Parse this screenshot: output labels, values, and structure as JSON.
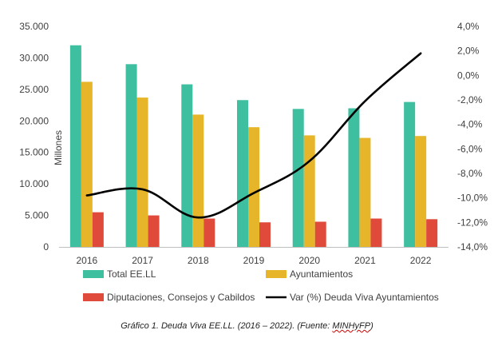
{
  "chart_data": {
    "type": "bar",
    "categories": [
      "2016",
      "2017",
      "2018",
      "2019",
      "2020",
      "2021",
      "2022"
    ],
    "series": [
      {
        "name": "Total EE.LL",
        "color": "#3DBFA0",
        "axis": "left",
        "kind": "bar",
        "values": [
          32000,
          29000,
          25800,
          23300,
          21900,
          22000,
          23000
        ]
      },
      {
        "name": "Ayuntamientos",
        "color": "#E6B52A",
        "axis": "left",
        "kind": "bar",
        "values": [
          26200,
          23700,
          21000,
          19000,
          17700,
          17300,
          17600
        ]
      },
      {
        "name": "Diputaciones, Consejos y Cabildos",
        "color": "#E04A3A",
        "axis": "left",
        "kind": "bar",
        "values": [
          5500,
          5000,
          4500,
          3900,
          4000,
          4500,
          4400
        ]
      },
      {
        "name": "Var (%) Deuda Viva Ayuntamientos",
        "color": "#000000",
        "axis": "right",
        "kind": "line",
        "values": [
          -9.8,
          -9.3,
          -11.6,
          -9.6,
          -7.0,
          -2.1,
          1.8
        ]
      }
    ],
    "y_left": {
      "label": "Millones",
      "ylim": [
        0,
        35000
      ],
      "ticks": [
        0,
        5000,
        10000,
        15000,
        20000,
        25000,
        30000,
        35000
      ],
      "tick_labels": [
        "0",
        "5.000",
        "10.000",
        "15.000",
        "20.000",
        "25.000",
        "30.000",
        "35.000"
      ]
    },
    "y_right": {
      "ylim": [
        -14,
        4
      ],
      "ticks": [
        4,
        2,
        0,
        -2,
        -4,
        -6,
        -8,
        -10,
        -12,
        -14
      ],
      "tick_labels": [
        "4,0%",
        "2,0%",
        "0,0%",
        "-2,0%",
        "-4,0%",
        "-6,0%",
        "-8,0%",
        "-10,0%",
        "-12,0%",
        "-14,0%"
      ]
    },
    "grid": false,
    "legend_position": "bottom"
  },
  "caption": {
    "main": "Gráfico 1. Deuda Viva EE.LL. (2016 – 2022). (Fuente: ",
    "source": "MINHyFP",
    "close": ")"
  }
}
